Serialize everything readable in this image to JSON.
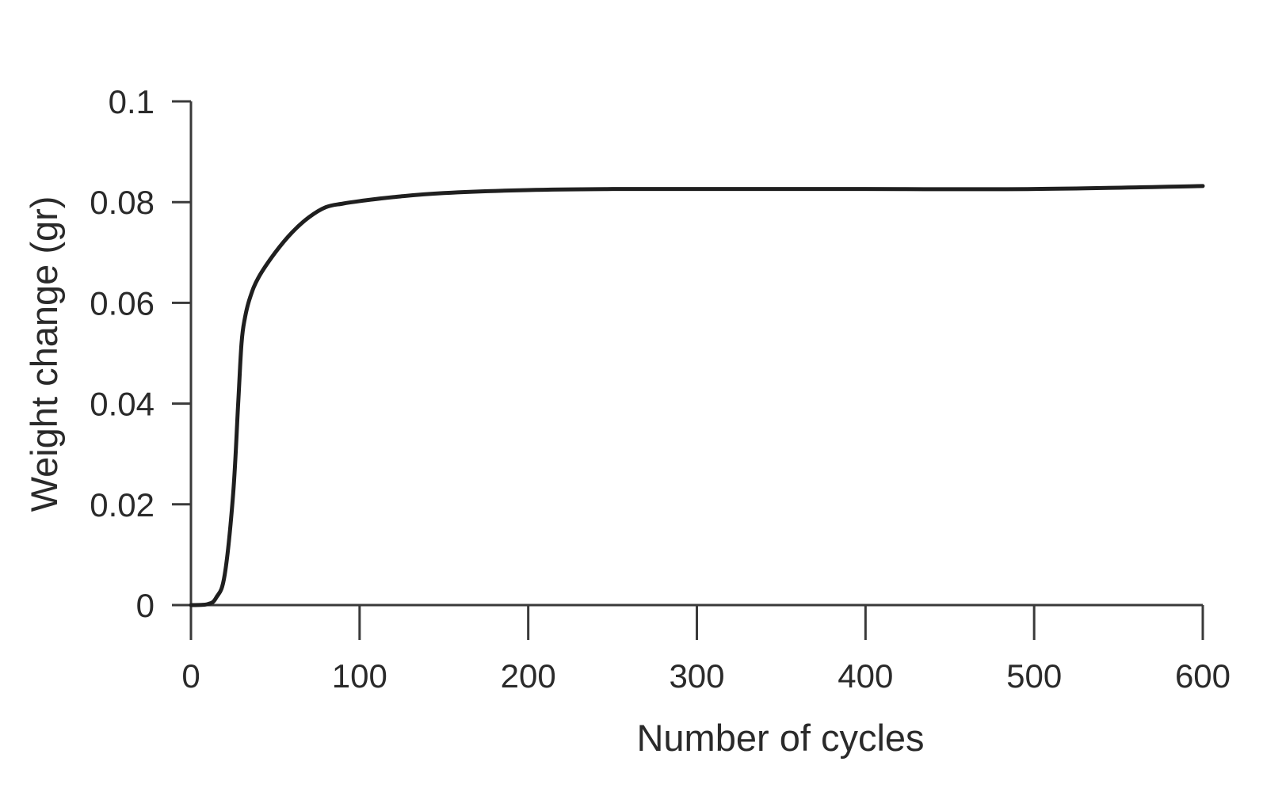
{
  "chart_data": {
    "type": "line",
    "title": "",
    "xlabel": "Number of cycles",
    "ylabel": "Weight change (gr)",
    "xlim": [
      0,
      600
    ],
    "ylim": [
      0,
      0.1
    ],
    "x_ticks": [
      0,
      100,
      200,
      300,
      400,
      500,
      600
    ],
    "y_ticks": [
      0,
      0.02,
      0.04,
      0.06,
      0.08,
      0.1
    ],
    "x_tick_labels": [
      "0",
      "100",
      "200",
      "300",
      "400",
      "500",
      "600"
    ],
    "y_tick_labels": [
      "0",
      "0.02",
      "0.04",
      "0.06",
      "0.08",
      "0.1"
    ],
    "grid": false,
    "series": [
      {
        "x": [
          0,
          10,
          15,
          20,
          25,
          28,
          30,
          32,
          35,
          40,
          50,
          60,
          70,
          80,
          90,
          100,
          120,
          150,
          200,
          250,
          300,
          400,
          500,
          600
        ],
        "y": [
          0.0,
          0.0002,
          0.0015,
          0.006,
          0.022,
          0.04,
          0.052,
          0.057,
          0.061,
          0.065,
          0.07,
          0.074,
          0.077,
          0.079,
          0.0797,
          0.0802,
          0.081,
          0.0818,
          0.0824,
          0.0826,
          0.0826,
          0.0826,
          0.0826,
          0.0832
        ]
      }
    ]
  }
}
